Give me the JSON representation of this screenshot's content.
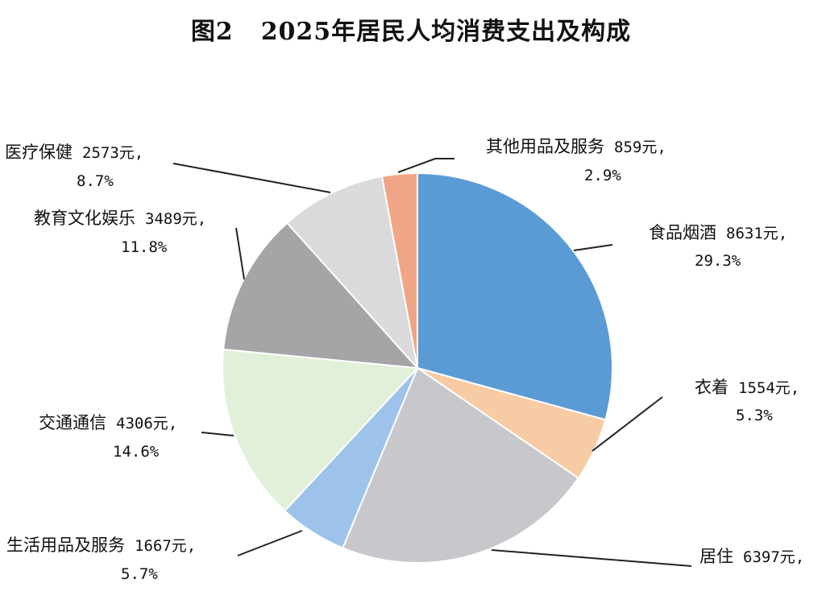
{
  "chart_data": {
    "type": "pie",
    "title": "2025年居民人均消费支出及构成",
    "figure_label": "图2",
    "categories": [
      "食品烟酒",
      "衣着",
      "居住",
      "生活用品及服务",
      "交通通信",
      "教育文化娱乐",
      "医疗保健",
      "其他用品及服务"
    ],
    "values": [
      8631,
      1554,
      6397,
      1667,
      4306,
      3489,
      2573,
      859
    ],
    "percent": [
      29.3,
      5.3,
      21.7,
      5.7,
      14.6,
      11.8,
      8.7,
      2.9
    ],
    "value_labels": [
      "8631元,",
      "1554元,",
      "6397元,",
      "1667元,",
      "4306元,",
      "3489元,",
      "2573元,",
      "859元,"
    ],
    "percent_labels": [
      "29.3%",
      "5.3%",
      "",
      "5.7%",
      "14.6%",
      "11.8%",
      "8.7%",
      "2.9%"
    ],
    "colors": [
      "#5b9bd5",
      "#f7cba4",
      "#c8c8cc",
      "#9dc3ea",
      "#e2f0d9",
      "#a5a5a8",
      "#dadadc",
      "#f0a686"
    ],
    "start_angle_deg": 0,
    "direction": "clockwise"
  }
}
